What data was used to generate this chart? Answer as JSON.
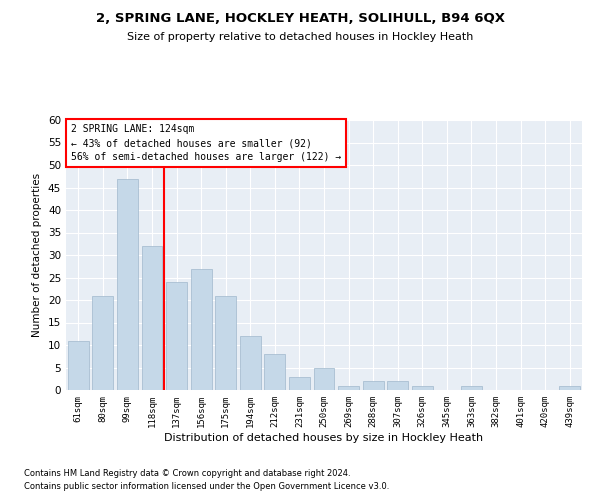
{
  "title": "2, SPRING LANE, HOCKLEY HEATH, SOLIHULL, B94 6QX",
  "subtitle": "Size of property relative to detached houses in Hockley Heath",
  "xlabel": "Distribution of detached houses by size in Hockley Heath",
  "ylabel": "Number of detached properties",
  "categories": [
    "61sqm",
    "80sqm",
    "99sqm",
    "118sqm",
    "137sqm",
    "156sqm",
    "175sqm",
    "194sqm",
    "212sqm",
    "231sqm",
    "250sqm",
    "269sqm",
    "288sqm",
    "307sqm",
    "326sqm",
    "345sqm",
    "363sqm",
    "382sqm",
    "401sqm",
    "420sqm",
    "439sqm"
  ],
  "values": [
    11,
    21,
    47,
    32,
    24,
    27,
    21,
    12,
    8,
    3,
    5,
    1,
    2,
    2,
    1,
    0,
    1,
    0,
    0,
    0,
    1
  ],
  "bar_color": "#c5d8e8",
  "bar_edge_color": "#a0b8cc",
  "vline_x": 3.5,
  "vline_color": "red",
  "ylim": [
    0,
    60
  ],
  "yticks": [
    0,
    5,
    10,
    15,
    20,
    25,
    30,
    35,
    40,
    45,
    50,
    55,
    60
  ],
  "annotation_line1": "2 SPRING LANE: 124sqm",
  "annotation_line2": "← 43% of detached houses are smaller (92)",
  "annotation_line3": "56% of semi-detached houses are larger (122) →",
  "annotation_box_color": "red",
  "footer_line1": "Contains HM Land Registry data © Crown copyright and database right 2024.",
  "footer_line2": "Contains public sector information licensed under the Open Government Licence v3.0.",
  "plot_bg_color": "#e8eef5"
}
